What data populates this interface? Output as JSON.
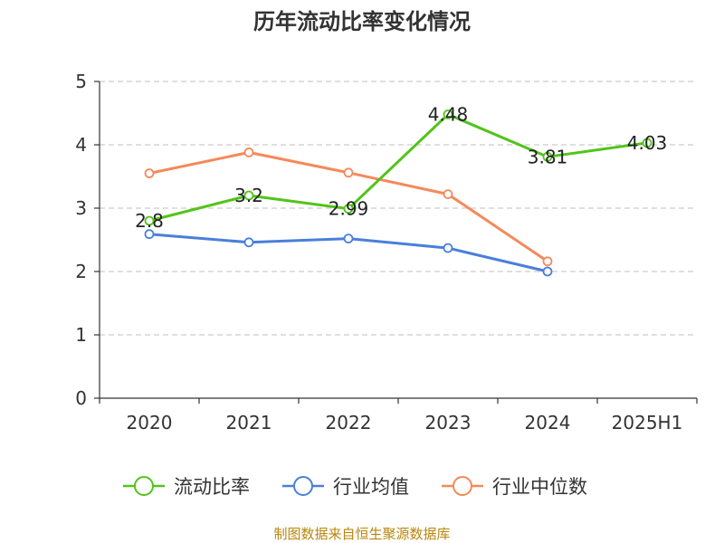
{
  "chart_data": {
    "type": "line",
    "title": "历年流动比率变化情况",
    "categories": [
      "2020",
      "2021",
      "2022",
      "2023",
      "2024",
      "2025H1"
    ],
    "ylim": [
      0,
      5
    ],
    "yticks": [
      "0",
      "1",
      "2",
      "3",
      "4",
      "5"
    ],
    "grid": true,
    "legend_position": "bottom",
    "series": [
      {
        "name": "流动比率",
        "color": "#52c41a",
        "values": [
          2.8,
          3.2,
          2.99,
          4.48,
          3.81,
          4.03
        ],
        "labels": [
          "2.8",
          "3.2",
          "2.99",
          "4.48",
          "3.81",
          "4.03"
        ]
      },
      {
        "name": "行业均值",
        "color": "#4a7fdb",
        "values": [
          2.59,
          2.46,
          2.52,
          2.37,
          2.0,
          null
        ]
      },
      {
        "name": "行业中位数",
        "color": "#f5895a",
        "values": [
          3.55,
          3.88,
          3.56,
          3.22,
          2.16,
          null
        ]
      }
    ]
  },
  "source": "制图数据来自恒生聚源数据库"
}
